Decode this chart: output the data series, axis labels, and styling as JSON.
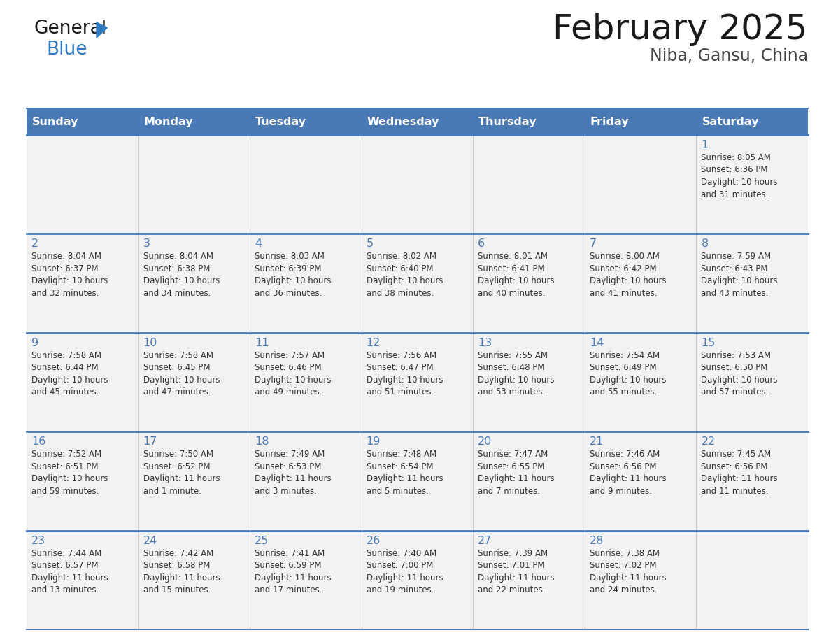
{
  "title": "February 2025",
  "subtitle": "Niba, Gansu, China",
  "header_bg_color": "#4a7ab5",
  "header_text_color": "#ffffff",
  "cell_bg_color": "#f2f2f2",
  "day_number_color": "#4a7ab5",
  "text_color": "#333333",
  "line_color": "#4a7ab5",
  "border_color": "#aaaaaa",
  "logo_text_color": "#1a1a1a",
  "logo_blue_color": "#2e7bbf",
  "days_of_week": [
    "Sunday",
    "Monday",
    "Tuesday",
    "Wednesday",
    "Thursday",
    "Friday",
    "Saturday"
  ],
  "weeks": [
    [
      {
        "day": "",
        "info": ""
      },
      {
        "day": "",
        "info": ""
      },
      {
        "day": "",
        "info": ""
      },
      {
        "day": "",
        "info": ""
      },
      {
        "day": "",
        "info": ""
      },
      {
        "day": "",
        "info": ""
      },
      {
        "day": "1",
        "info": "Sunrise: 8:05 AM\nSunset: 6:36 PM\nDaylight: 10 hours\nand 31 minutes."
      }
    ],
    [
      {
        "day": "2",
        "info": "Sunrise: 8:04 AM\nSunset: 6:37 PM\nDaylight: 10 hours\nand 32 minutes."
      },
      {
        "day": "3",
        "info": "Sunrise: 8:04 AM\nSunset: 6:38 PM\nDaylight: 10 hours\nand 34 minutes."
      },
      {
        "day": "4",
        "info": "Sunrise: 8:03 AM\nSunset: 6:39 PM\nDaylight: 10 hours\nand 36 minutes."
      },
      {
        "day": "5",
        "info": "Sunrise: 8:02 AM\nSunset: 6:40 PM\nDaylight: 10 hours\nand 38 minutes."
      },
      {
        "day": "6",
        "info": "Sunrise: 8:01 AM\nSunset: 6:41 PM\nDaylight: 10 hours\nand 40 minutes."
      },
      {
        "day": "7",
        "info": "Sunrise: 8:00 AM\nSunset: 6:42 PM\nDaylight: 10 hours\nand 41 minutes."
      },
      {
        "day": "8",
        "info": "Sunrise: 7:59 AM\nSunset: 6:43 PM\nDaylight: 10 hours\nand 43 minutes."
      }
    ],
    [
      {
        "day": "9",
        "info": "Sunrise: 7:58 AM\nSunset: 6:44 PM\nDaylight: 10 hours\nand 45 minutes."
      },
      {
        "day": "10",
        "info": "Sunrise: 7:58 AM\nSunset: 6:45 PM\nDaylight: 10 hours\nand 47 minutes."
      },
      {
        "day": "11",
        "info": "Sunrise: 7:57 AM\nSunset: 6:46 PM\nDaylight: 10 hours\nand 49 minutes."
      },
      {
        "day": "12",
        "info": "Sunrise: 7:56 AM\nSunset: 6:47 PM\nDaylight: 10 hours\nand 51 minutes."
      },
      {
        "day": "13",
        "info": "Sunrise: 7:55 AM\nSunset: 6:48 PM\nDaylight: 10 hours\nand 53 minutes."
      },
      {
        "day": "14",
        "info": "Sunrise: 7:54 AM\nSunset: 6:49 PM\nDaylight: 10 hours\nand 55 minutes."
      },
      {
        "day": "15",
        "info": "Sunrise: 7:53 AM\nSunset: 6:50 PM\nDaylight: 10 hours\nand 57 minutes."
      }
    ],
    [
      {
        "day": "16",
        "info": "Sunrise: 7:52 AM\nSunset: 6:51 PM\nDaylight: 10 hours\nand 59 minutes."
      },
      {
        "day": "17",
        "info": "Sunrise: 7:50 AM\nSunset: 6:52 PM\nDaylight: 11 hours\nand 1 minute."
      },
      {
        "day": "18",
        "info": "Sunrise: 7:49 AM\nSunset: 6:53 PM\nDaylight: 11 hours\nand 3 minutes."
      },
      {
        "day": "19",
        "info": "Sunrise: 7:48 AM\nSunset: 6:54 PM\nDaylight: 11 hours\nand 5 minutes."
      },
      {
        "day": "20",
        "info": "Sunrise: 7:47 AM\nSunset: 6:55 PM\nDaylight: 11 hours\nand 7 minutes."
      },
      {
        "day": "21",
        "info": "Sunrise: 7:46 AM\nSunset: 6:56 PM\nDaylight: 11 hours\nand 9 minutes."
      },
      {
        "day": "22",
        "info": "Sunrise: 7:45 AM\nSunset: 6:56 PM\nDaylight: 11 hours\nand 11 minutes."
      }
    ],
    [
      {
        "day": "23",
        "info": "Sunrise: 7:44 AM\nSunset: 6:57 PM\nDaylight: 11 hours\nand 13 minutes."
      },
      {
        "day": "24",
        "info": "Sunrise: 7:42 AM\nSunset: 6:58 PM\nDaylight: 11 hours\nand 15 minutes."
      },
      {
        "day": "25",
        "info": "Sunrise: 7:41 AM\nSunset: 6:59 PM\nDaylight: 11 hours\nand 17 minutes."
      },
      {
        "day": "26",
        "info": "Sunrise: 7:40 AM\nSunset: 7:00 PM\nDaylight: 11 hours\nand 19 minutes."
      },
      {
        "day": "27",
        "info": "Sunrise: 7:39 AM\nSunset: 7:01 PM\nDaylight: 11 hours\nand 22 minutes."
      },
      {
        "day": "28",
        "info": "Sunrise: 7:38 AM\nSunset: 7:02 PM\nDaylight: 11 hours\nand 24 minutes."
      },
      {
        "day": "",
        "info": ""
      }
    ]
  ]
}
